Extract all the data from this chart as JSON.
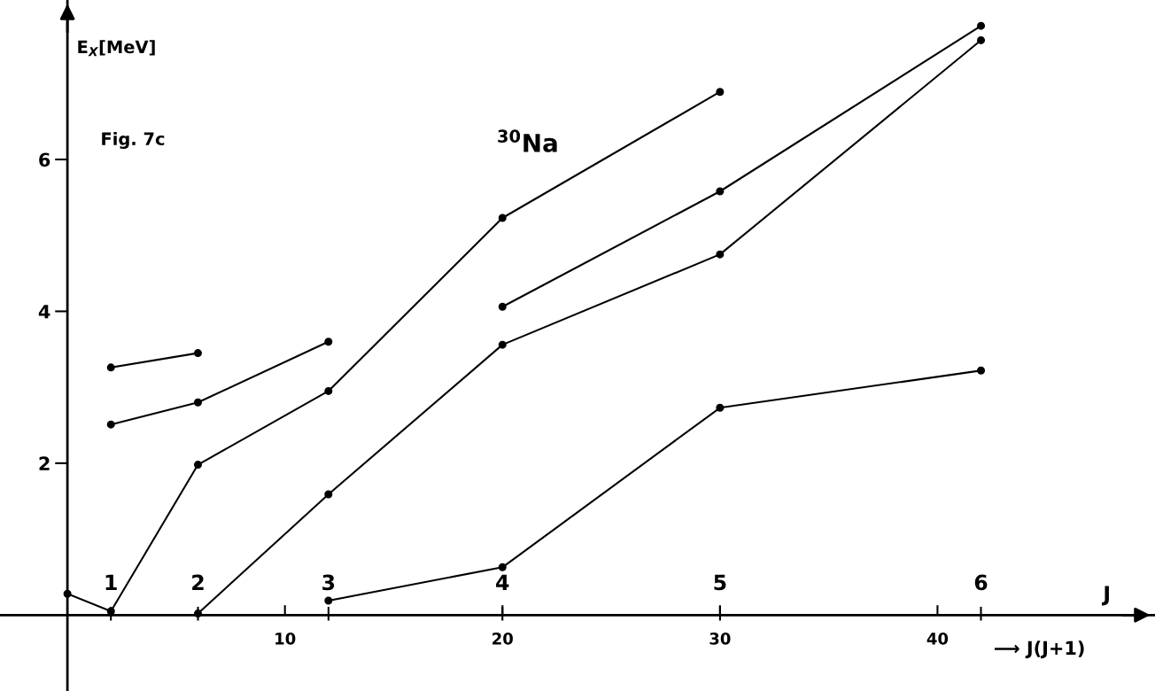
{
  "chart_data": {
    "type": "line",
    "xlabel": "⟶ J(J+1)",
    "ylabel": "E$_{X}$[MeV]",
    "xlim": [
      -3.1,
      50
    ],
    "ylim": [
      -1,
      8.1
    ],
    "xticks": [
      10,
      20,
      30,
      40
    ],
    "yticks": [
      2,
      4,
      6
    ],
    "marker": "circle",
    "line_style": "solid",
    "grid": false,
    "legend": false,
    "annotations": [
      "Fig. 7c",
      "$^{30}$Na",
      "J",
      "1",
      "2",
      "3",
      "4",
      "5",
      "6"
    ],
    "series": [
      {
        "color": "#000000",
        "x": [
          0,
          2,
          6,
          12,
          20,
          30
        ],
        "values": [
          0.28,
          0.05,
          1.98,
          2.95,
          5.23,
          6.89
        ]
      },
      {
        "color": "#000000",
        "x": [
          2,
          6,
          12
        ],
        "values": [
          2.51,
          2.8,
          3.6
        ]
      },
      {
        "color": "#000000",
        "x": [
          2,
          6
        ],
        "values": [
          3.26,
          3.45
        ]
      },
      {
        "color": "#000000",
        "x": [
          6,
          12,
          20,
          30,
          42
        ],
        "values": [
          0.02,
          1.59,
          3.56,
          4.75,
          7.57
        ]
      },
      {
        "color": "#000000",
        "x": [
          20,
          30,
          42
        ],
        "values": [
          4.06,
          5.58,
          7.76
        ]
      },
      {
        "color": "#000000",
        "x": [
          12,
          20,
          30,
          42
        ],
        "values": [
          0.19,
          0.63,
          2.73,
          3.22
        ]
      }
    ]
  }
}
